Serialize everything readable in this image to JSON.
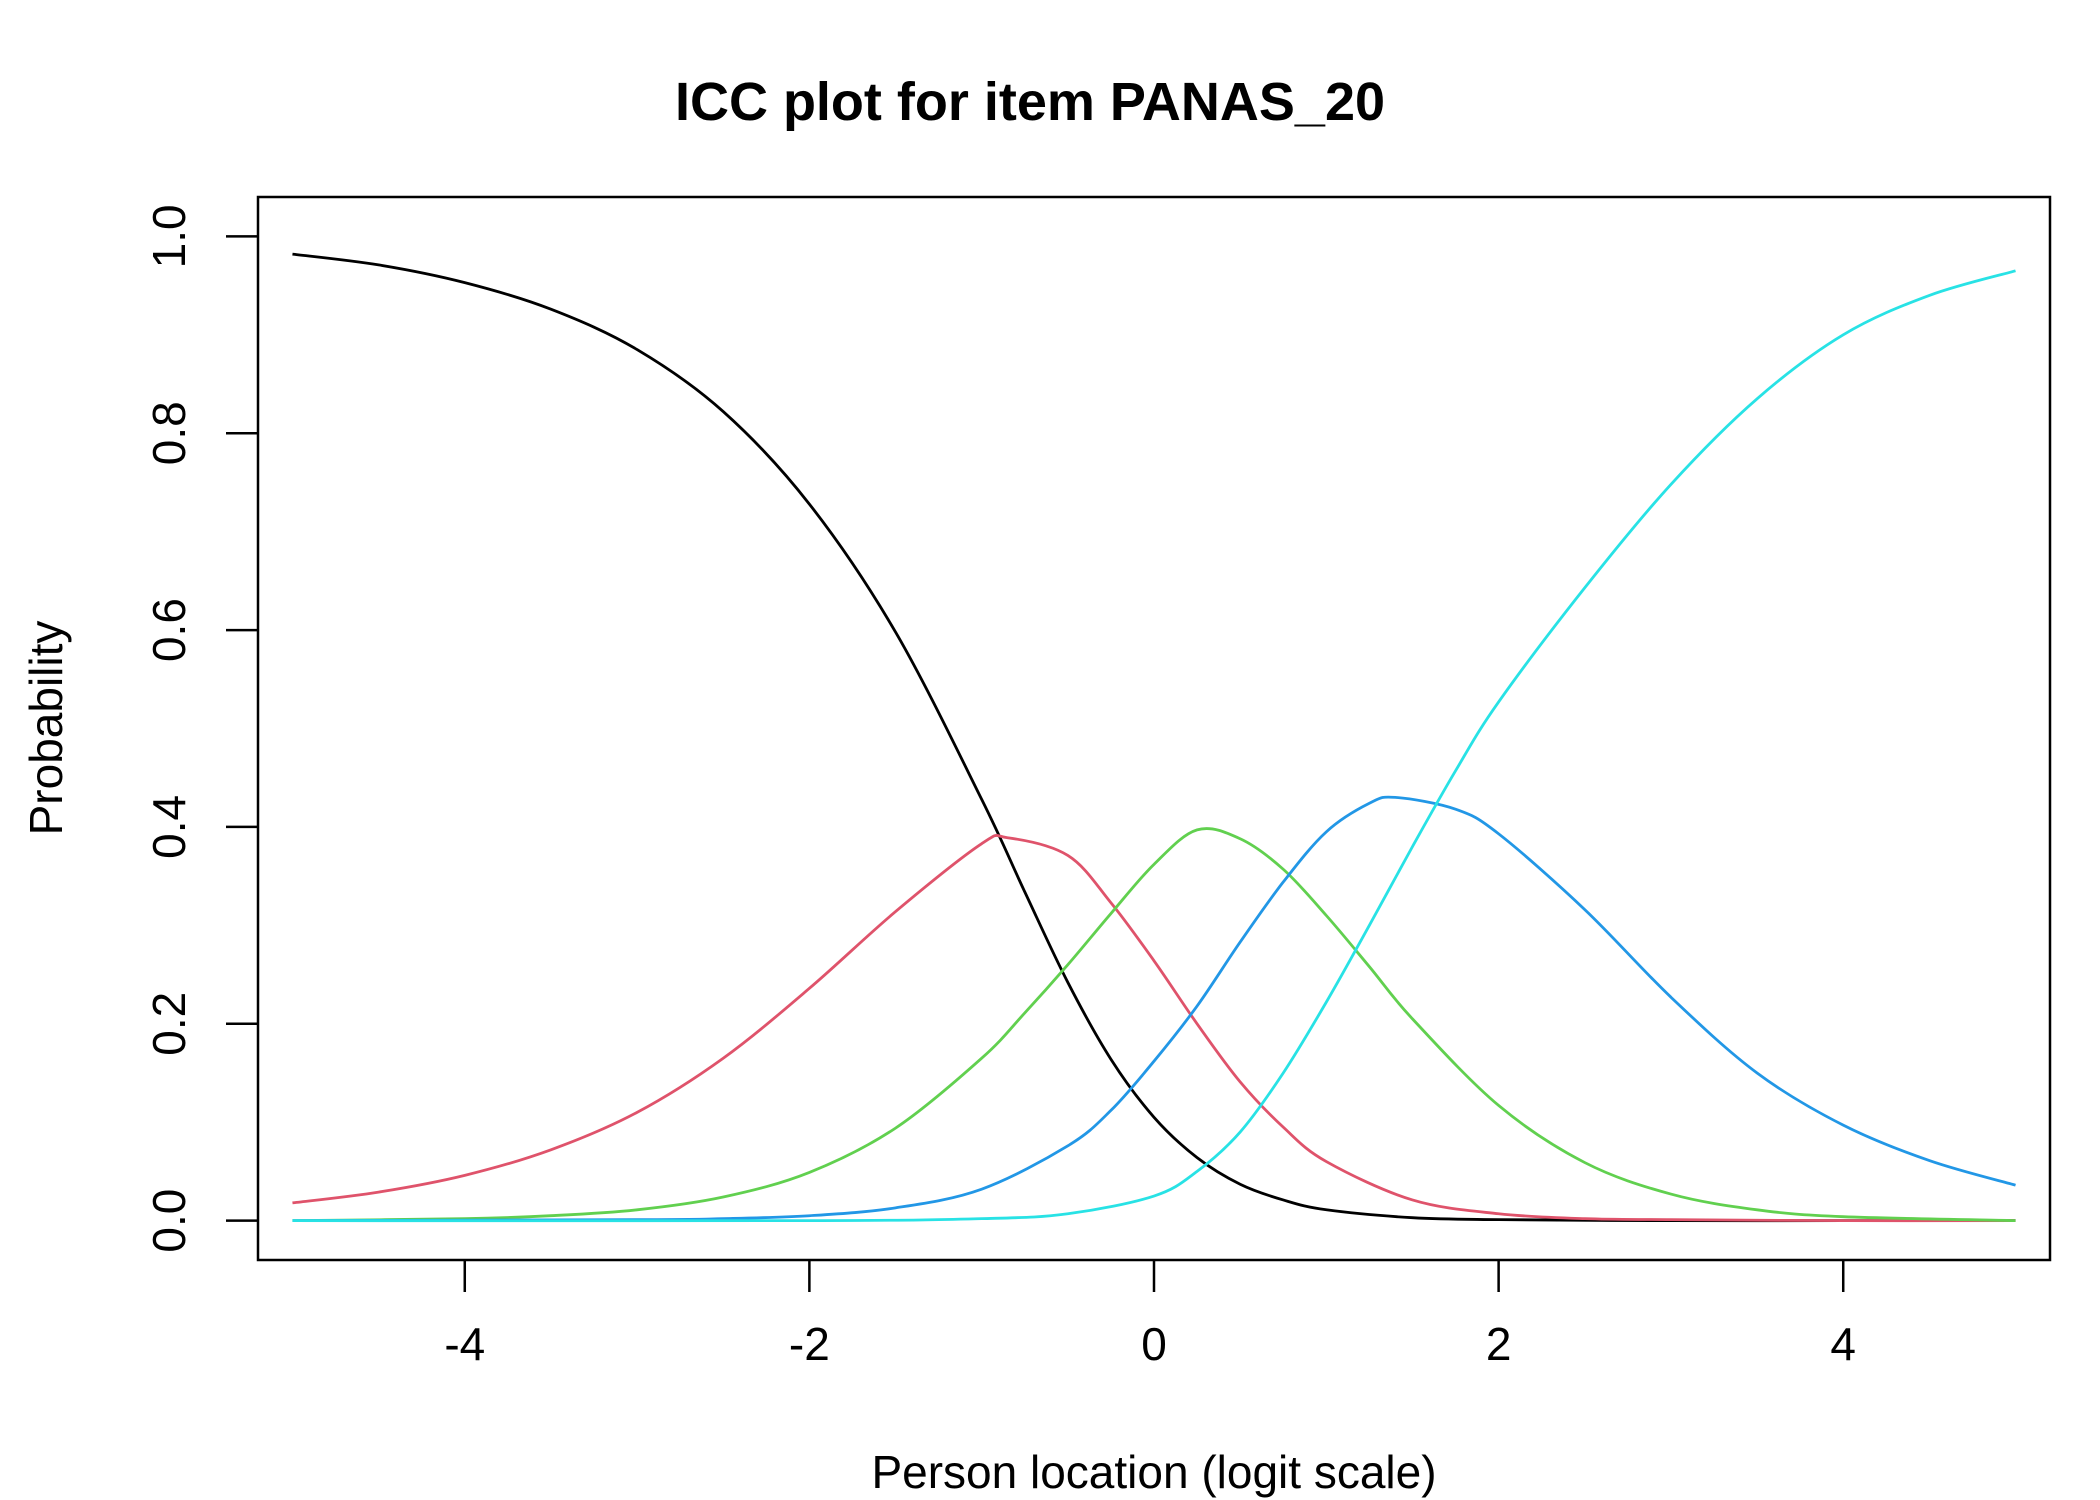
{
  "chart_data": {
    "type": "line",
    "title": "ICC plot for item PANAS_20",
    "xlabel": "Person location (logit scale)",
    "ylabel": "Probability",
    "xlim": [
      -5.2,
      5.2
    ],
    "ylim": [
      -0.04,
      1.04
    ],
    "x_ticks": [
      "-4",
      "-2",
      "0",
      "2",
      "4"
    ],
    "y_ticks": [
      "0.0",
      "0.2",
      "0.4",
      "0.6",
      "0.8",
      "1.0"
    ],
    "grid": false,
    "legend": "none",
    "series": [
      {
        "color": "#000000",
        "points": [
          [
            -5,
            0.982
          ],
          [
            -4.5,
            0.971
          ],
          [
            -4,
            0.953
          ],
          [
            -3.5,
            0.926
          ],
          [
            -3,
            0.885
          ],
          [
            -2.5,
            0.822
          ],
          [
            -2,
            0.728
          ],
          [
            -1.5,
            0.598
          ],
          [
            -1,
            0.428
          ],
          [
            -0.75,
            0.334
          ],
          [
            -0.5,
            0.242
          ],
          [
            -0.25,
            0.164
          ],
          [
            0,
            0.105
          ],
          [
            0.25,
            0.064
          ],
          [
            0.5,
            0.037
          ],
          [
            0.75,
            0.021
          ],
          [
            1,
            0.011
          ],
          [
            1.5,
            0.003
          ],
          [
            2,
            0.001
          ],
          [
            3,
            0.0
          ],
          [
            4,
            0.0
          ],
          [
            5,
            0.0
          ]
        ]
      },
      {
        "color": "#DF536B",
        "points": [
          [
            -5,
            0.018
          ],
          [
            -4.5,
            0.029
          ],
          [
            -4,
            0.046
          ],
          [
            -3.5,
            0.072
          ],
          [
            -3,
            0.11
          ],
          [
            -2.5,
            0.165
          ],
          [
            -2,
            0.236
          ],
          [
            -1.5,
            0.314
          ],
          [
            -1,
            0.383
          ],
          [
            -0.85,
            0.389
          ],
          [
            -0.5,
            0.371
          ],
          [
            -0.25,
            0.323
          ],
          [
            0,
            0.264
          ],
          [
            0.25,
            0.2
          ],
          [
            0.5,
            0.141
          ],
          [
            0.75,
            0.095
          ],
          [
            1,
            0.06
          ],
          [
            1.5,
            0.021
          ],
          [
            2,
            0.007
          ],
          [
            2.5,
            0.002
          ],
          [
            3,
            0.001
          ],
          [
            4,
            0.0
          ],
          [
            5,
            0.0
          ]
        ]
      },
      {
        "color": "#61D04F",
        "points": [
          [
            -5,
            0.0
          ],
          [
            -4,
            0.002
          ],
          [
            -3.5,
            0.005
          ],
          [
            -3,
            0.011
          ],
          [
            -2.5,
            0.024
          ],
          [
            -2,
            0.049
          ],
          [
            -1.5,
            0.094
          ],
          [
            -1,
            0.165
          ],
          [
            -0.75,
            0.211
          ],
          [
            -0.5,
            0.26
          ],
          [
            -0.25,
            0.312
          ],
          [
            0,
            0.362
          ],
          [
            0.25,
            0.397
          ],
          [
            0.5,
            0.388
          ],
          [
            0.75,
            0.357
          ],
          [
            1,
            0.31
          ],
          [
            1.25,
            0.258
          ],
          [
            1.5,
            0.205
          ],
          [
            2,
            0.117
          ],
          [
            2.5,
            0.059
          ],
          [
            3,
            0.027
          ],
          [
            3.5,
            0.011
          ],
          [
            4,
            0.004
          ],
          [
            5,
            0.0
          ]
        ]
      },
      {
        "color": "#2297E6",
        "points": [
          [
            -5,
            0.0
          ],
          [
            -3,
            0.001
          ],
          [
            -2.5,
            0.002
          ],
          [
            -2,
            0.005
          ],
          [
            -1.5,
            0.013
          ],
          [
            -1,
            0.032
          ],
          [
            -0.5,
            0.076
          ],
          [
            -0.25,
            0.112
          ],
          [
            0,
            0.162
          ],
          [
            0.25,
            0.218
          ],
          [
            0.5,
            0.283
          ],
          [
            0.75,
            0.344
          ],
          [
            1,
            0.395
          ],
          [
            1.25,
            0.424
          ],
          [
            1.4,
            0.43
          ],
          [
            1.75,
            0.418
          ],
          [
            2,
            0.393
          ],
          [
            2.5,
            0.316
          ],
          [
            3,
            0.227
          ],
          [
            3.5,
            0.15
          ],
          [
            4,
            0.097
          ],
          [
            4.5,
            0.061
          ],
          [
            5,
            0.036
          ]
        ]
      },
      {
        "color": "#28E2E5",
        "points": [
          [
            -5,
            0.0
          ],
          [
            -2,
            0.0
          ],
          [
            -1,
            0.002
          ],
          [
            -0.5,
            0.007
          ],
          [
            0,
            0.025
          ],
          [
            0.25,
            0.05
          ],
          [
            0.5,
            0.09
          ],
          [
            0.75,
            0.15
          ],
          [
            1,
            0.222
          ],
          [
            1.25,
            0.3
          ],
          [
            1.5,
            0.38
          ],
          [
            1.75,
            0.457
          ],
          [
            2,
            0.527
          ],
          [
            2.5,
            0.643
          ],
          [
            3,
            0.748
          ],
          [
            3.5,
            0.835
          ],
          [
            4,
            0.9
          ],
          [
            4.5,
            0.94
          ],
          [
            5,
            0.965
          ]
        ]
      }
    ]
  }
}
